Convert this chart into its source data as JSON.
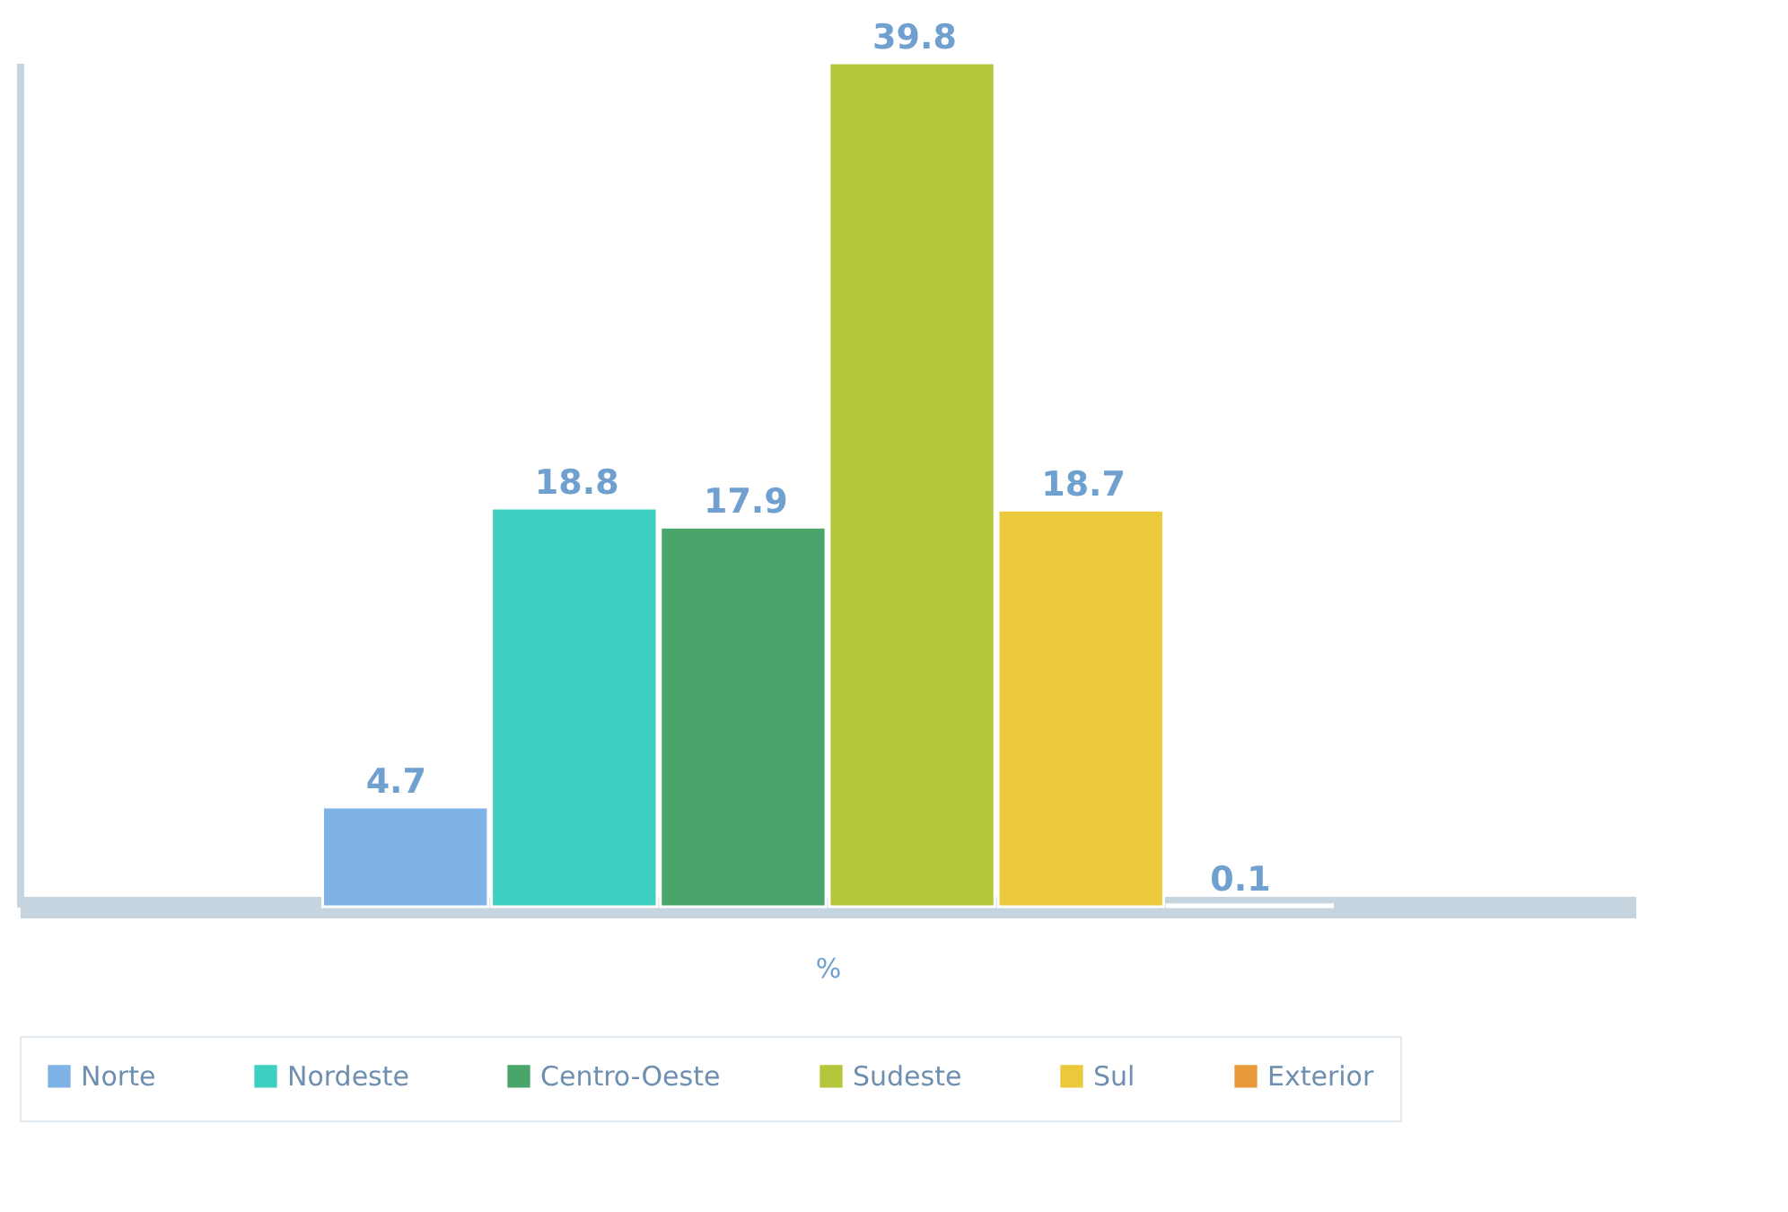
{
  "chart_data": {
    "type": "bar",
    "xlabel": "%",
    "categories": [
      null
    ],
    "series": [
      {
        "name": "Norte",
        "color": "#7fb2e5",
        "values": [
          4.7
        ]
      },
      {
        "name": "Nordeste",
        "color": "#3fcfc0",
        "values": [
          18.8
        ]
      },
      {
        "name": "Centro-Oeste",
        "color": "#4aa56a",
        "values": [
          17.9
        ]
      },
      {
        "name": "Sudeste",
        "color": "#b6c63a",
        "values": [
          39.8
        ]
      },
      {
        "name": "Sul",
        "color": "#ecc93a",
        "values": [
          18.7
        ]
      },
      {
        "name": "Exterior",
        "color": "#e89a3a",
        "values": [
          0.1
        ]
      }
    ],
    "data_labels": true,
    "legend": "bottom"
  }
}
